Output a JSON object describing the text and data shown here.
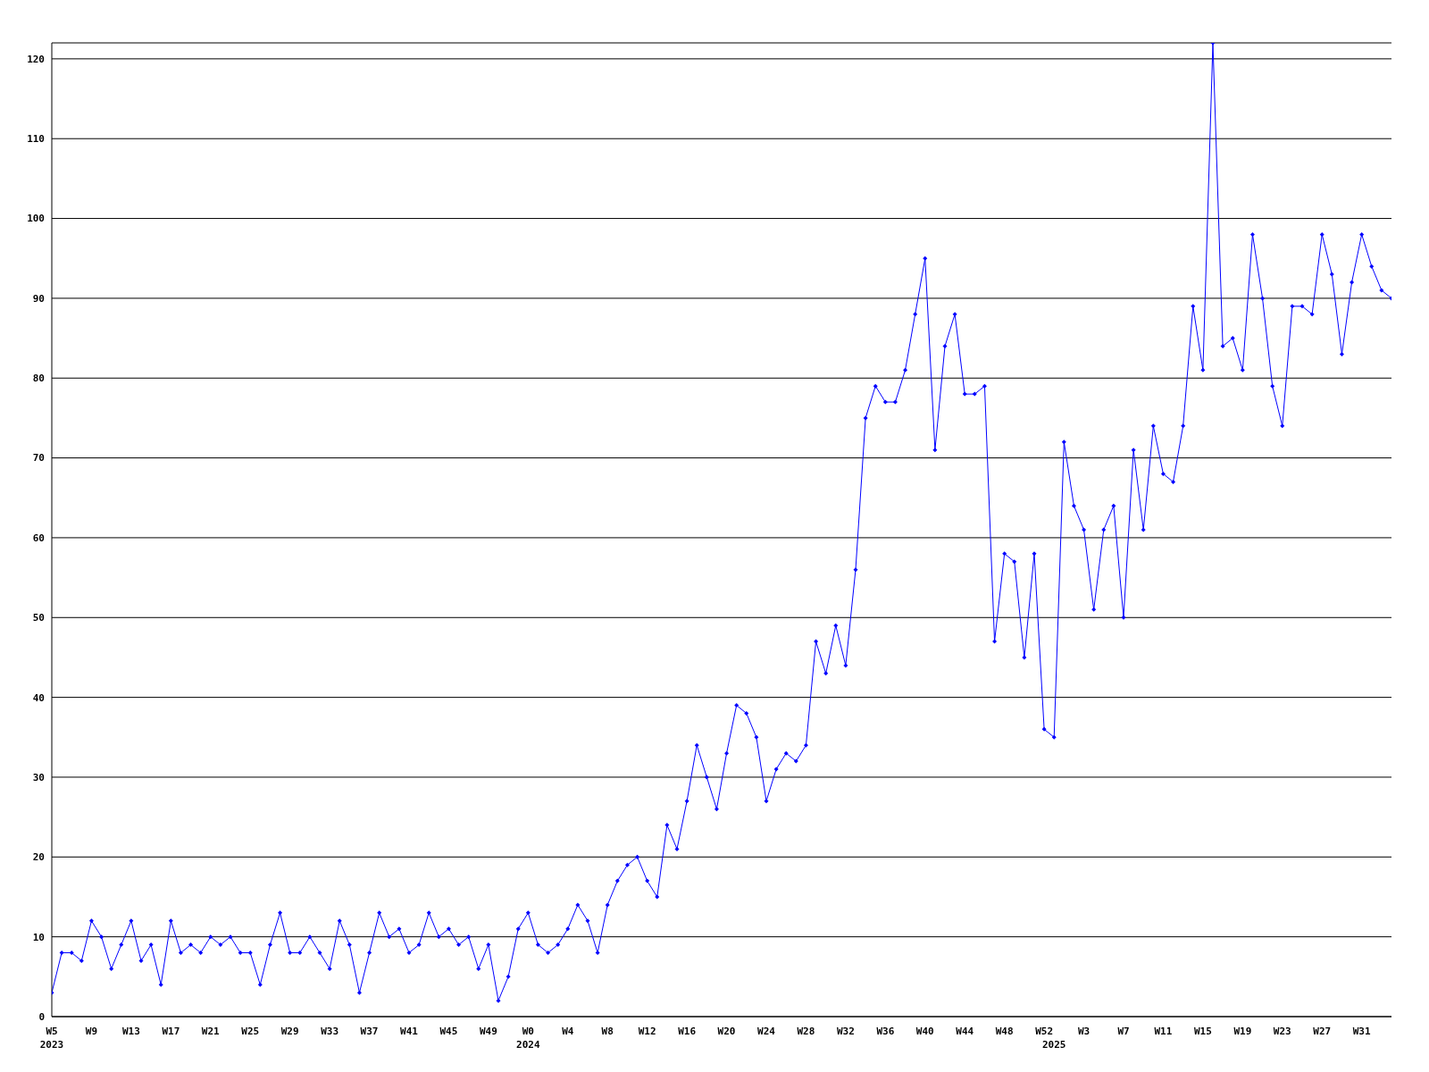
{
  "chart_data": {
    "type": "line",
    "categories": [
      "W5\n2023",
      null,
      null,
      null,
      "W9",
      null,
      null,
      null,
      "W13",
      null,
      null,
      null,
      "W17",
      null,
      null,
      null,
      "W21",
      null,
      null,
      null,
      "W25",
      null,
      null,
      null,
      "W29",
      null,
      null,
      null,
      "W33",
      null,
      null,
      null,
      "W37",
      null,
      null,
      null,
      "W41",
      null,
      null,
      null,
      "W45",
      null,
      null,
      null,
      "W49",
      null,
      null,
      null,
      "W0\n2024",
      null,
      null,
      null,
      "W4",
      null,
      null,
      null,
      "W8",
      null,
      null,
      null,
      "W12",
      null,
      null,
      null,
      "W16",
      null,
      null,
      null,
      "W20",
      null,
      null,
      null,
      "W24",
      null,
      null,
      null,
      "W28",
      null,
      null,
      null,
      "W32",
      null,
      null,
      null,
      "W36",
      null,
      null,
      null,
      "W40",
      null,
      null,
      null,
      "W44",
      null,
      null,
      null,
      "W48",
      null,
      null,
      null,
      "W52",
      "\n2025",
      null,
      null,
      "W3",
      null,
      null,
      null,
      "W7",
      null,
      null,
      null,
      "W11",
      null,
      null,
      null,
      "W15",
      null,
      null,
      null,
      "W19",
      null,
      null,
      null,
      "W23",
      null,
      null,
      null,
      "W27",
      null,
      null,
      null,
      "W31",
      null,
      null,
      null
    ],
    "series": [
      {
        "color": "#0000ff",
        "values": [
          3,
          8,
          8,
          7,
          12,
          10,
          6,
          9,
          12,
          7,
          9,
          4,
          12,
          8,
          9,
          8,
          10,
          9,
          10,
          8,
          8,
          4,
          9,
          13,
          8,
          8,
          10,
          8,
          6,
          12,
          9,
          3,
          8,
          13,
          10,
          11,
          8,
          9,
          13,
          10,
          11,
          9,
          10,
          6,
          9,
          2,
          5,
          11,
          13,
          9,
          8,
          9,
          11,
          14,
          12,
          8,
          14,
          17,
          19,
          20,
          17,
          15,
          24,
          21,
          27,
          34,
          30,
          26,
          33,
          39,
          38,
          35,
          27,
          31,
          33,
          32,
          34,
          47,
          43,
          49,
          44,
          56,
          75,
          79,
          77,
          77,
          81,
          88,
          95,
          71,
          84,
          88,
          78,
          78,
          79,
          47,
          58,
          57,
          45,
          58,
          36,
          35,
          72,
          64,
          61,
          51,
          61,
          64,
          50,
          71,
          61,
          74,
          68,
          67,
          74,
          89,
          81,
          122,
          84,
          85,
          81,
          98,
          90,
          79,
          74,
          89,
          89,
          88,
          98,
          93,
          83,
          92,
          98,
          94,
          91,
          90
        ]
      }
    ],
    "ylim": [
      0,
      122
    ],
    "yticks": [
      0,
      10,
      20,
      30,
      40,
      50,
      60,
      70,
      80,
      90,
      100,
      110,
      120
    ],
    "grid": "y",
    "marker": "diamond"
  }
}
